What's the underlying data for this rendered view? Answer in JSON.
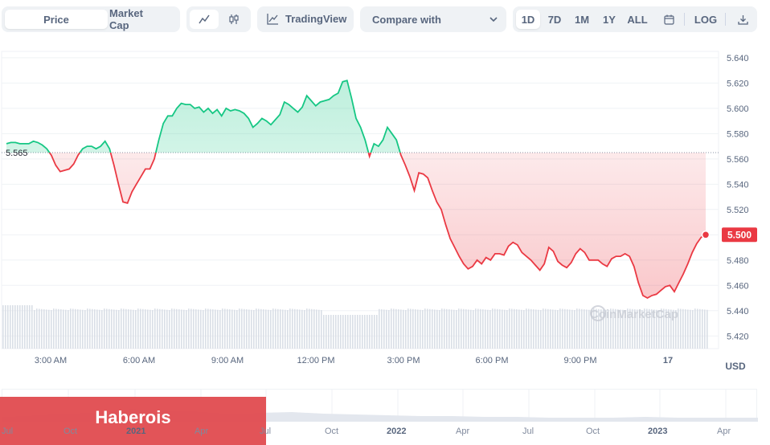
{
  "toolbar": {
    "price_label": "Price",
    "market_cap_label": "Market Cap",
    "tradingview_label": "TradingView",
    "compare_label": "Compare with",
    "ranges": [
      "1D",
      "7D",
      "1M",
      "1Y",
      "ALL"
    ],
    "active_range": "1D",
    "log_label": "LOG"
  },
  "chart_data": {
    "type": "line",
    "baseline_value": "5.565",
    "current_value": "5.500",
    "y_ticks": [
      "5.640",
      "5.620",
      "5.600",
      "5.580",
      "5.560",
      "5.540",
      "5.520",
      "5.500",
      "5.480",
      "5.460",
      "5.440",
      "5.420"
    ],
    "x_ticks": [
      "3:00 AM",
      "6:00 AM",
      "9:00 AM",
      "12:00 PM",
      "3:00 PM",
      "6:00 PM",
      "9:00 PM",
      "17"
    ],
    "currency_label": "USD",
    "ylim": [
      5.41,
      5.645
    ],
    "series": [
      {
        "values": [
          5.572,
          5.573,
          5.573,
          5.572,
          5.572,
          5.572,
          5.574,
          5.573,
          5.571,
          5.568,
          5.563,
          5.555,
          5.55,
          5.551,
          5.552,
          5.556,
          5.563,
          5.568,
          5.57,
          5.57,
          5.568,
          5.57,
          5.574,
          5.568,
          5.555,
          5.54,
          5.526,
          5.525,
          5.534,
          5.54,
          5.546,
          5.552,
          5.552,
          5.56,
          5.575,
          5.588,
          5.594,
          5.594,
          5.6,
          5.604,
          5.603,
          5.603,
          5.6,
          5.601,
          5.597,
          5.6,
          5.596,
          5.599,
          5.594,
          5.6,
          5.598,
          5.599,
          5.598,
          5.596,
          5.592,
          5.585,
          5.588,
          5.592,
          5.59,
          5.587,
          5.591,
          5.595,
          5.605,
          5.603,
          5.6,
          5.597,
          5.601,
          5.61,
          5.606,
          5.602,
          5.605,
          5.606,
          5.607,
          5.61,
          5.612,
          5.621,
          5.622,
          5.608,
          5.592,
          5.585,
          5.575,
          5.562,
          5.572,
          5.57,
          5.575,
          5.585,
          5.58,
          5.575,
          5.563,
          5.555,
          5.546,
          5.535,
          5.549,
          5.548,
          5.545,
          5.535,
          5.526,
          5.52,
          5.508,
          5.497,
          5.49,
          5.483,
          5.477,
          5.473,
          5.475,
          5.48,
          5.477,
          5.482,
          5.48,
          5.485,
          5.485,
          5.484,
          5.491,
          5.494,
          5.492,
          5.486,
          5.483,
          5.48,
          5.476,
          5.472,
          5.477,
          5.49,
          5.487,
          5.479,
          5.476,
          5.474,
          5.478,
          5.485,
          5.489,
          5.486,
          5.48,
          5.48,
          5.48,
          5.477,
          5.475,
          5.481,
          5.483,
          5.483,
          5.485,
          5.483,
          5.475,
          5.462,
          5.452,
          5.45,
          5.452,
          5.453,
          5.456,
          5.459,
          5.46,
          5.455,
          5.462,
          5.469,
          5.477,
          5.486,
          5.493,
          5.498,
          5.5
        ]
      }
    ],
    "watermark": "CoinMarketCap"
  },
  "navigator": {
    "ticks": [
      "Jul",
      "Oct",
      "2021",
      "Apr",
      "Jul",
      "Oct",
      "2022",
      "Apr",
      "Jul",
      "Oct",
      "2023",
      "Apr"
    ],
    "bold_ticks": [
      "2021",
      "2022",
      "2023"
    ]
  },
  "overlay": {
    "label": "Haberois"
  }
}
